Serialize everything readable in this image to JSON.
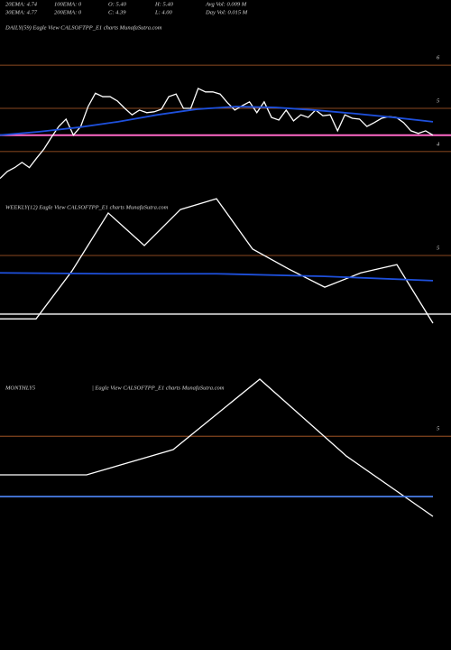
{
  "header": {
    "stats": [
      [
        "20EMA: 4.74",
        "100EMA: 0",
        "O: 5.40",
        "H: 5.40",
        "Avg Vol: 0.009 M"
      ],
      [
        "30EMA: 4.77",
        "200EMA: 0",
        "C: 4.39",
        "L: 4.00",
        "Day Vol: 0.015 M"
      ]
    ]
  },
  "chart_data": [
    {
      "type": "line",
      "title": "DAILY(59) Eagle   View  CALSOFTPP_E1 charts MunafaSutra.com",
      "ylim": [
        3.33,
        6.67
      ],
      "yticks": [
        6,
        5,
        4
      ],
      "tick_color": "#b8602a",
      "hlines": [
        {
          "value": 4.38,
          "color": "#ff69c8"
        }
      ],
      "series": [
        {
          "color": "#ffffff",
          "values": [
            3.38,
            3.54,
            3.63,
            3.75,
            3.63,
            3.85,
            4.06,
            4.33,
            4.58,
            4.75,
            4.38,
            4.58,
            5.04,
            5.35,
            5.27,
            5.27,
            5.17,
            5.0,
            4.85,
            4.96,
            4.9,
            4.92,
            4.98,
            5.27,
            5.33,
            5.0,
            5.0,
            5.46,
            5.38,
            5.38,
            5.33,
            5.13,
            4.96,
            5.06,
            5.15,
            4.9,
            5.15,
            4.79,
            4.73,
            4.96,
            4.71,
            4.85,
            4.79,
            4.96,
            4.83,
            4.85,
            4.48,
            4.85,
            4.77,
            4.75,
            4.58,
            4.67,
            4.77,
            4.81,
            4.79,
            4.67,
            4.48,
            4.42,
            4.48,
            4.38
          ]
        },
        {
          "color": "#1e50dc",
          "values": [
            4.38,
            4.46,
            4.56,
            4.69,
            4.85,
            4.98,
            5.04,
            5.02,
            4.96,
            4.88,
            4.79,
            4.69
          ]
        }
      ]
    },
    {
      "type": "line",
      "title": "WEEKLY(12) Eagle   View  CALSOFTPP_E1 charts MunafaSutra.com",
      "ylim": [
        3.19,
        6.52
      ],
      "yticks": [
        5
      ],
      "tick_color": "#b8602a",
      "hlines": [
        {
          "value": 3.65,
          "color": "#bbbbbb"
        }
      ],
      "series": [
        {
          "color": "#ffffff",
          "values": [
            3.54,
            3.54,
            4.65,
            5.98,
            5.23,
            6.06,
            6.31,
            5.15,
            4.69,
            4.27,
            4.6,
            4.79,
            3.44
          ]
        },
        {
          "color": "#1e50dc",
          "values": [
            4.6,
            4.58,
            4.58,
            4.52,
            4.42
          ]
        }
      ]
    },
    {
      "type": "line",
      "title": "MONTHLY5",
      "subtitle": "| Eagle   View  CALSOFTPP_E1 charts MunafaSutra.com",
      "ylim": [
        2.08,
        7.08
      ],
      "yticks": [
        5
      ],
      "tick_color": "#b8602a",
      "series": [
        {
          "color": "#ffffff",
          "values": [
            3.93,
            3.93,
            4.63,
            6.58,
            4.45,
            2.78
          ]
        },
        {
          "color": "#4a7ee8",
          "values": [
            3.33,
            3.33
          ]
        }
      ]
    }
  ]
}
